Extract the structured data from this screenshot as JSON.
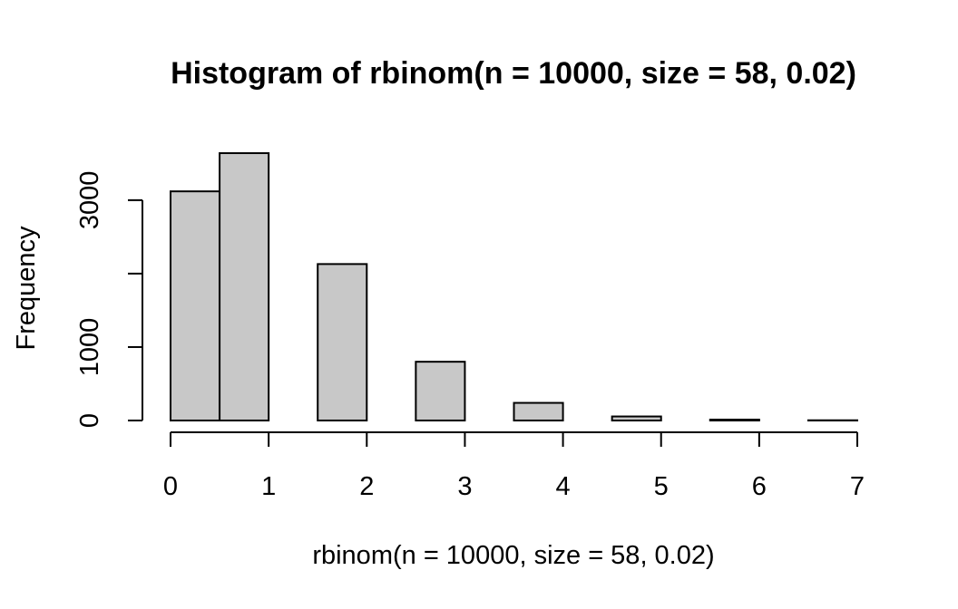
{
  "chart_data": {
    "type": "bar",
    "title": "Histogram of rbinom(n = 10000, size = 58, 0.02)",
    "xlabel": "rbinom(n = 10000, size = 58, 0.02)",
    "ylabel": "Frequency",
    "bins": [
      {
        "x0": 0.0,
        "x1": 0.5,
        "count": 3120
      },
      {
        "x0": 0.5,
        "x1": 1.0,
        "count": 3640
      },
      {
        "x0": 1.0,
        "x1": 1.5,
        "count": 0
      },
      {
        "x0": 1.5,
        "x1": 2.0,
        "count": 2130
      },
      {
        "x0": 2.0,
        "x1": 2.5,
        "count": 0
      },
      {
        "x0": 2.5,
        "x1": 3.0,
        "count": 800
      },
      {
        "x0": 3.0,
        "x1": 3.5,
        "count": 0
      },
      {
        "x0": 3.5,
        "x1": 4.0,
        "count": 240
      },
      {
        "x0": 4.0,
        "x1": 4.5,
        "count": 0
      },
      {
        "x0": 4.5,
        "x1": 5.0,
        "count": 55
      },
      {
        "x0": 5.0,
        "x1": 5.5,
        "count": 0
      },
      {
        "x0": 5.5,
        "x1": 6.0,
        "count": 12
      },
      {
        "x0": 6.0,
        "x1": 6.5,
        "count": 0
      },
      {
        "x0": 6.5,
        "x1": 7.0,
        "count": 3
      }
    ],
    "xlim": [
      0,
      7
    ],
    "ylim": [
      0,
      3640
    ],
    "xticks": [
      "0",
      "1",
      "2",
      "3",
      "4",
      "5",
      "6",
      "7"
    ],
    "yticks": [
      "0",
      "1000",
      "3000"
    ],
    "ytick_values": [
      0,
      1000,
      2000,
      3000
    ],
    "grid": false,
    "bar_fill": "#c8c8c8",
    "bar_stroke": "#000000"
  }
}
